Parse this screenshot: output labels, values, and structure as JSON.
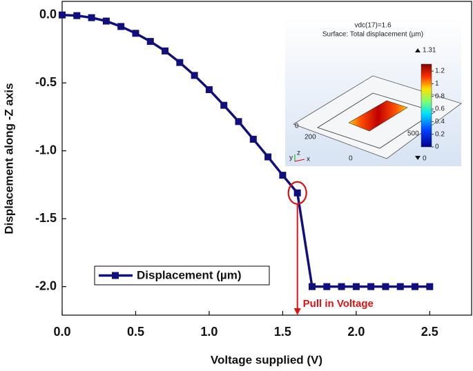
{
  "chart_data": {
    "type": "line",
    "x": [
      0,
      0.1,
      0.2,
      0.3,
      0.4,
      0.5,
      0.6,
      0.7,
      0.8,
      0.9,
      1.0,
      1.1,
      1.2,
      1.3,
      1.4,
      1.5,
      1.6,
      1.7,
      1.8,
      1.9,
      2.0,
      2.1,
      2.2,
      2.3,
      2.4,
      2.5
    ],
    "series": [
      {
        "name": "Displacement (µm)",
        "color": "#0f0f7d",
        "values": [
          0,
          -0.005,
          -0.02,
          -0.045,
          -0.085,
          -0.135,
          -0.195,
          -0.265,
          -0.35,
          -0.445,
          -0.55,
          -0.665,
          -0.785,
          -0.915,
          -1.045,
          -1.18,
          -1.31,
          -2.0,
          -2.0,
          -2.0,
          -2.0,
          -2.0,
          -2.0,
          -2.0,
          -2.0,
          -2.0
        ]
      }
    ],
    "xlim": [
      0,
      2.785
    ],
    "ylim": [
      -2.21,
      0.1
    ],
    "xticks": [
      {
        "value": 0,
        "label": "0.0"
      },
      0.5,
      {
        "value": 1,
        "label": "1.0"
      },
      1.5,
      {
        "value": 2,
        "label": "2.0"
      },
      2.5
    ],
    "yticks": [
      {
        "value": 0,
        "label": "0.0"
      },
      -0.5,
      {
        "value": -1,
        "label": "-1.0"
      },
      -1.5,
      {
        "value": -2,
        "label": "-2.0"
      }
    ],
    "xlabel": "Voltage supplied (V)",
    "ylabel": "Displacement along -Z axis",
    "legend": "lower-left",
    "annotation": {
      "text": "Pull in Voltage",
      "x": 1.6,
      "y": -1.31,
      "color": "#e01010"
    },
    "inset": {
      "title": "vdc(17)=1.6",
      "subtitle": "Surface: Total displacement (µm)",
      "max": 1.31,
      "min": 0,
      "colorbar_ticks": [
        1.2,
        1,
        0.8,
        0.6,
        0.4,
        0.2,
        0
      ],
      "scale_labels": [
        "500",
        "200",
        "0",
        "0"
      ],
      "axes_labels": [
        "z",
        "y",
        "x"
      ]
    }
  }
}
